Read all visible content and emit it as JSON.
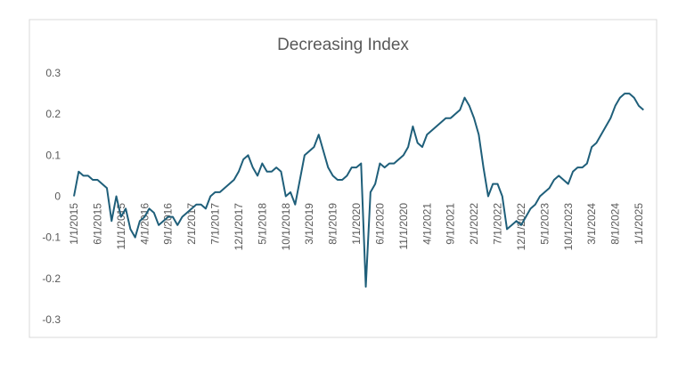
{
  "chart_data": {
    "type": "line",
    "title": "Decreasing Index",
    "categories": [
      "1/1/2015",
      null,
      null,
      null,
      null,
      "6/1/2015",
      null,
      null,
      null,
      null,
      "11/1/2015",
      null,
      null,
      null,
      null,
      "4/1/2016",
      null,
      null,
      null,
      null,
      "9/1/2016",
      null,
      null,
      null,
      null,
      "2/1/2017",
      null,
      null,
      null,
      null,
      "7/1/2017",
      null,
      null,
      null,
      null,
      "12/1/2017",
      null,
      null,
      null,
      null,
      "5/1/2018",
      null,
      null,
      null,
      null,
      "10/1/2018",
      null,
      null,
      null,
      null,
      "3/1/2019",
      null,
      null,
      null,
      null,
      "8/1/2019",
      null,
      null,
      null,
      null,
      "1/1/2020",
      null,
      null,
      null,
      null,
      "6/1/2020",
      null,
      null,
      null,
      null,
      "11/1/2020",
      null,
      null,
      null,
      null,
      "4/1/2021",
      null,
      null,
      null,
      null,
      "9/1/2021",
      null,
      null,
      null,
      null,
      "2/1/2022",
      null,
      null,
      null,
      null,
      "7/1/2022",
      null,
      null,
      null,
      null,
      "12/1/2022",
      null,
      null,
      null,
      null,
      "5/1/2023",
      null,
      null,
      null,
      null,
      "10/1/2023",
      null,
      null,
      null,
      null,
      "3/1/2024",
      null,
      null,
      null,
      null,
      "8/1/2024",
      null,
      null,
      null,
      null,
      "1/1/2025",
      null
    ],
    "series": [
      {
        "color": "#1f5f7a",
        "values": [
          0.0,
          0.06,
          0.05,
          0.05,
          0.04,
          0.04,
          0.03,
          0.02,
          -0.06,
          0.0,
          -0.05,
          -0.03,
          -0.08,
          -0.1,
          -0.06,
          -0.05,
          -0.03,
          -0.04,
          -0.07,
          -0.06,
          -0.05,
          -0.05,
          -0.07,
          -0.05,
          -0.04,
          -0.03,
          -0.02,
          -0.02,
          -0.03,
          0.0,
          0.01,
          0.01,
          0.02,
          0.03,
          0.04,
          0.06,
          0.09,
          0.1,
          0.07,
          0.05,
          0.08,
          0.06,
          0.06,
          0.07,
          0.06,
          0.0,
          0.01,
          -0.02,
          0.04,
          0.1,
          0.11,
          0.12,
          0.15,
          0.11,
          0.07,
          0.05,
          0.04,
          0.04,
          0.05,
          0.07,
          0.07,
          0.08,
          -0.22,
          0.01,
          0.03,
          0.08,
          0.07,
          0.08,
          0.08,
          0.09,
          0.1,
          0.12,
          0.17,
          0.13,
          0.12,
          0.15,
          0.16,
          0.17,
          0.18,
          0.19,
          0.19,
          0.2,
          0.21,
          0.24,
          0.22,
          0.19,
          0.15,
          0.07,
          0.0,
          0.03,
          0.03,
          0.0,
          -0.08,
          -0.07,
          -0.06,
          -0.07,
          -0.05,
          -0.03,
          -0.02,
          0.0,
          0.01,
          0.02,
          0.04,
          0.05,
          0.04,
          0.03,
          0.06,
          0.07,
          0.07,
          0.08,
          0.12,
          0.13,
          0.15,
          0.17,
          0.19,
          0.22,
          0.24,
          0.25,
          0.25,
          0.24,
          0.22,
          0.21
        ]
      }
    ],
    "ylim": [
      -0.3,
      0.3
    ],
    "yticks": [
      -0.3,
      -0.2,
      -0.1,
      0,
      0.1,
      0.2,
      0.3
    ]
  }
}
